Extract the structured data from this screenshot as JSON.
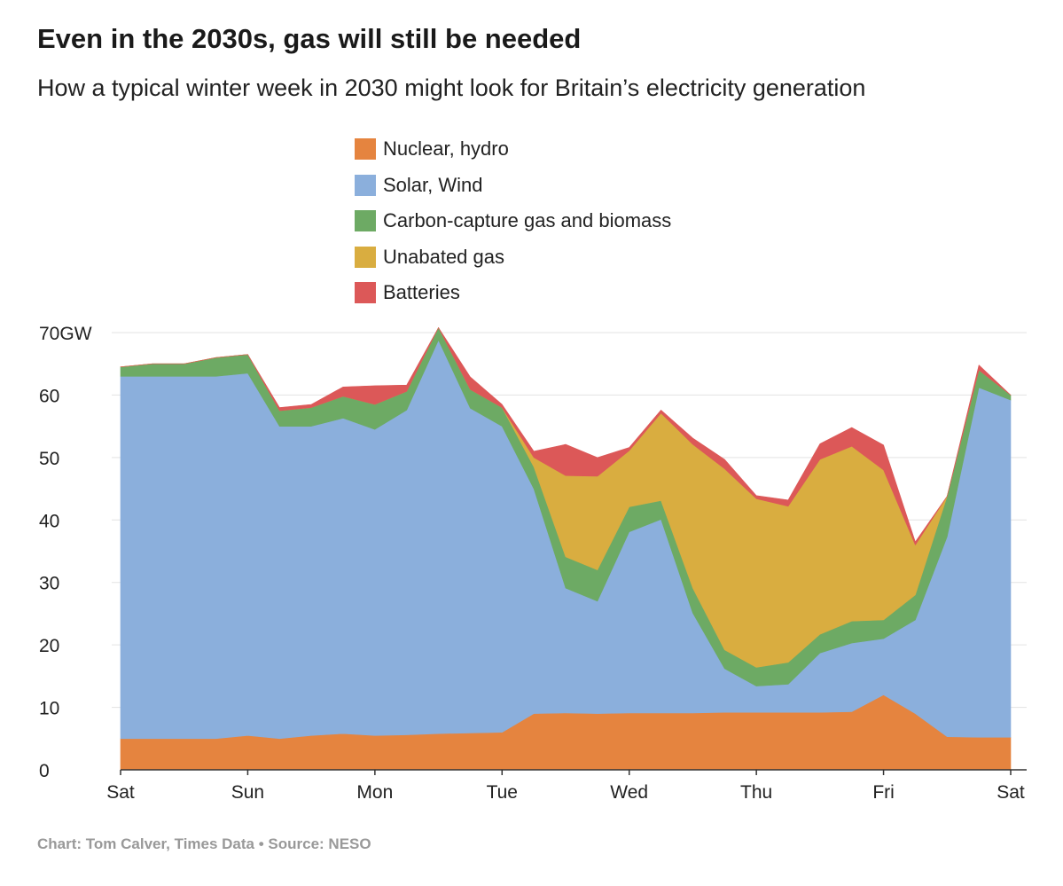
{
  "title": "Even in the 2030s, gas will still be needed",
  "subtitle": "How a typical winter week in 2030 might look for Britain’s electricity generation",
  "source": "Chart: Tom Calver, Times Data • Source: NESO",
  "chart_data": {
    "type": "area",
    "stacked": true,
    "title": "Even in the 2030s, gas will still be needed",
    "subtitle": "How a typical winter week in 2030 might look for Britain’s electricity generation",
    "xlabel": "",
    "ylabel": "",
    "unit": "GW",
    "ylim": [
      0,
      70
    ],
    "yticks": [
      0,
      10,
      20,
      30,
      40,
      50,
      60,
      70
    ],
    "ytick_labels": [
      "0",
      "10",
      "20",
      "30",
      "40",
      "50",
      "60",
      "70GW"
    ],
    "xlim": [
      0,
      7
    ],
    "x_ticks": [
      {
        "x": 0,
        "label": "Sat"
      },
      {
        "x": 1,
        "label": "Sun"
      },
      {
        "x": 2,
        "label": "Mon"
      },
      {
        "x": 3,
        "label": "Tue"
      },
      {
        "x": 4,
        "label": "Wed"
      },
      {
        "x": 5,
        "label": "Thu"
      },
      {
        "x": 6,
        "label": "Fri"
      },
      {
        "x": 7,
        "label": "Sat"
      }
    ],
    "x": [
      0,
      0.25,
      0.5,
      0.75,
      1,
      1.25,
      1.5,
      1.75,
      2,
      2.25,
      2.5,
      2.75,
      3,
      3.25,
      3.5,
      3.75,
      4,
      4.25,
      4.5,
      4.75,
      5,
      5.25,
      5.5,
      5.75,
      6,
      6.25,
      6.5,
      6.75,
      7
    ],
    "series": [
      {
        "name": "Nuclear, hydro",
        "color": "#E5843F",
        "values": [
          5.0,
          5.0,
          5.0,
          5.0,
          5.5,
          5.0,
          5.5,
          5.8,
          5.5,
          5.6,
          5.8,
          5.9,
          6.0,
          9.0,
          9.1,
          9.0,
          9.1,
          9.1,
          9.1,
          9.2,
          9.2,
          9.2,
          9.2,
          9.3,
          12.0,
          9.0,
          5.3,
          5.2,
          5.2
        ]
      },
      {
        "name": "Solar, Wind",
        "color": "#8BAFDC",
        "values": [
          58.0,
          58.0,
          58.0,
          58.0,
          58.0,
          50.0,
          49.5,
          50.5,
          49.0,
          52.0,
          63.0,
          52.0,
          49.0,
          36.0,
          20.0,
          18.0,
          29.0,
          31.0,
          16.0,
          7.0,
          4.2,
          4.5,
          9.5,
          11.0,
          9.0,
          15.0,
          32.0,
          56.0,
          54.0
        ]
      },
      {
        "name": "Carbon-capture gas and biomass",
        "color": "#6DAA64",
        "values": [
          1.5,
          2.0,
          2.0,
          3.0,
          3.0,
          2.5,
          3.0,
          3.5,
          4.0,
          3.0,
          2.0,
          3.0,
          3.0,
          3.5,
          5.0,
          5.0,
          4.0,
          3.0,
          4.0,
          3.0,
          3.0,
          3.5,
          3.0,
          3.5,
          3.0,
          4.0,
          6.5,
          2.8,
          0.8
        ]
      },
      {
        "name": "Unabated gas",
        "color": "#D9AD40",
        "values": [
          0.0,
          0.0,
          0.0,
          0.0,
          0.0,
          0.0,
          0.0,
          0.0,
          0.0,
          0.0,
          0.0,
          0.0,
          0.0,
          1.5,
          13.0,
          15.0,
          9.0,
          14.0,
          23.0,
          29.0,
          27.0,
          25.0,
          28.0,
          28.0,
          24.0,
          8.0,
          0.0,
          0.0,
          0.0
        ]
      },
      {
        "name": "Batteries",
        "color": "#DC5858",
        "values": [
          0.0,
          0.0,
          0.0,
          0.0,
          0.0,
          0.5,
          0.5,
          1.5,
          3.0,
          1.0,
          0.0,
          2.0,
          0.5,
          1.0,
          5.0,
          3.0,
          0.5,
          0.5,
          1.0,
          1.5,
          0.5,
          1.0,
          2.5,
          3.0,
          4.0,
          0.5,
          0.0,
          0.8,
          0.0
        ]
      }
    ]
  }
}
